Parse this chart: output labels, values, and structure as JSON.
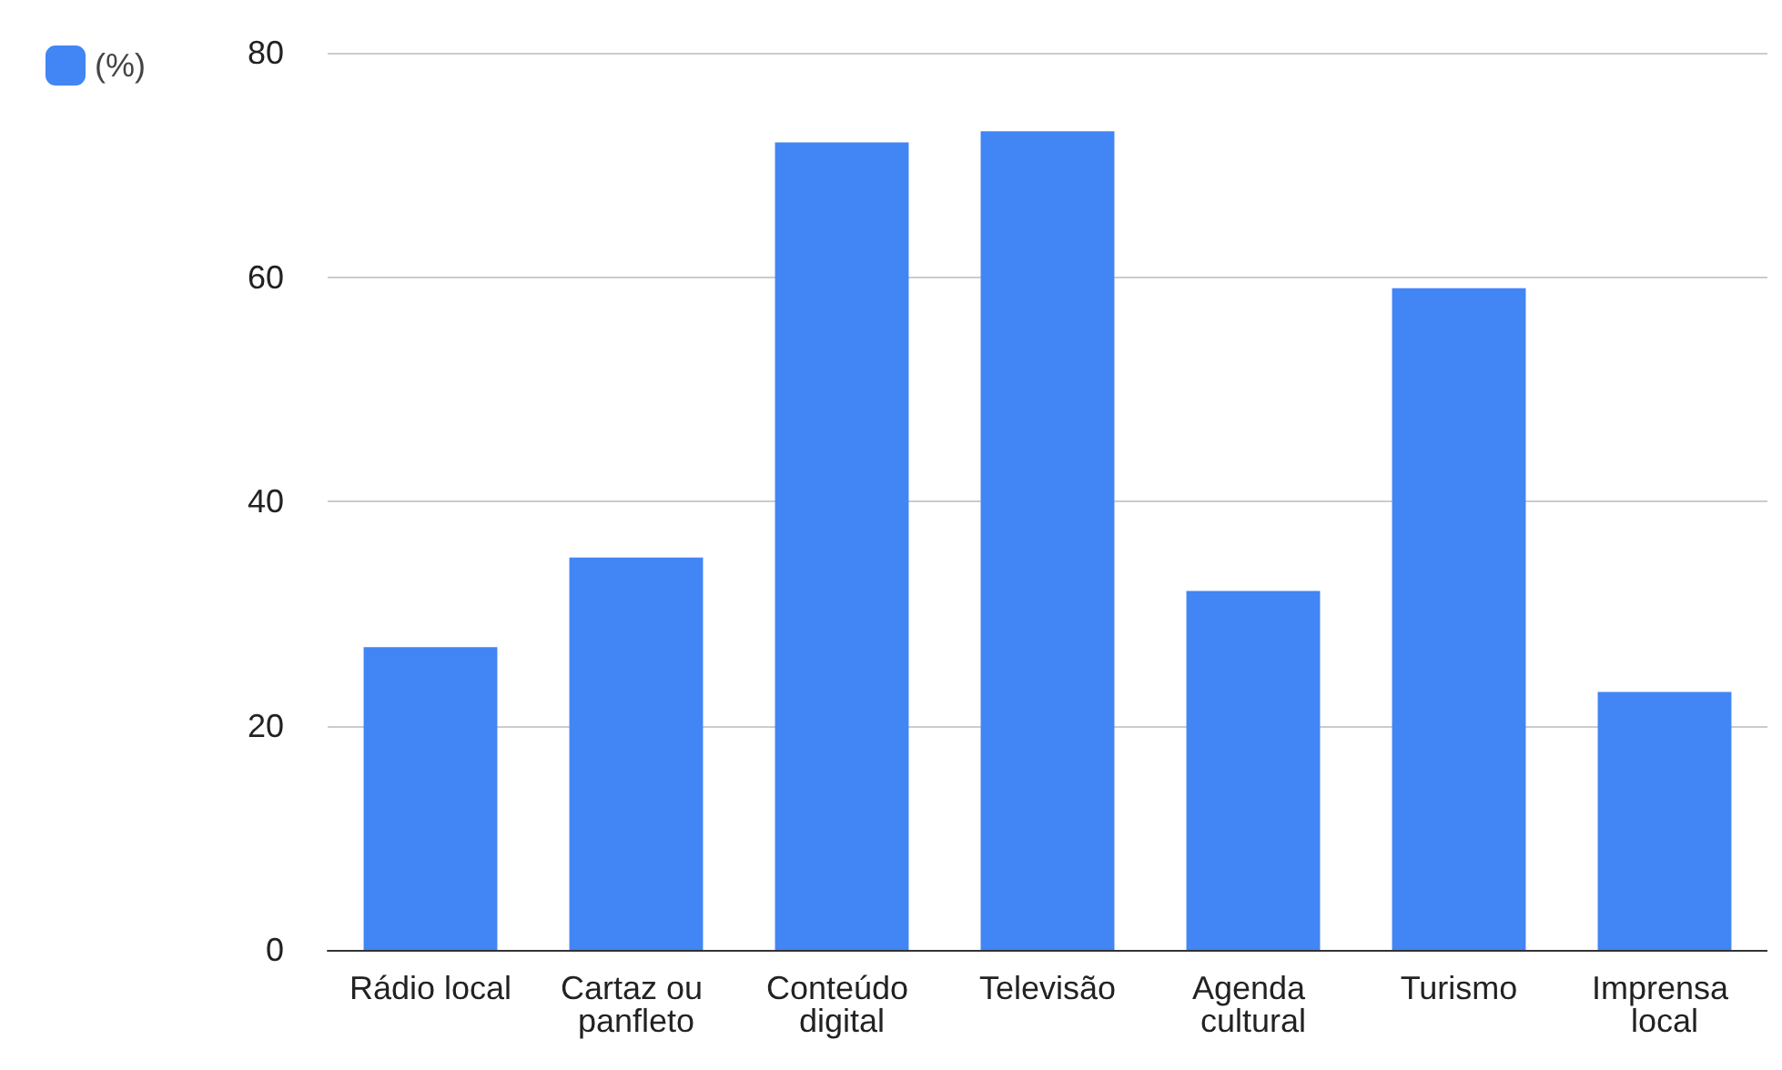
{
  "chart_data": {
    "type": "bar",
    "categories": [
      "Rádio local",
      "Cartaz ou panfleto",
      "Conteúdo digital",
      "Televisão",
      "Agenda cultural",
      "Turismo",
      "Imprensa local"
    ],
    "series": [
      {
        "name": "(%)",
        "color": "#4285f4",
        "values": [
          27,
          35,
          72,
          73,
          32,
          59,
          23
        ]
      }
    ],
    "ylim": [
      0,
      80
    ],
    "yticks": [
      0,
      20,
      40,
      60,
      80
    ],
    "grid": "y",
    "legend": "top left"
  }
}
